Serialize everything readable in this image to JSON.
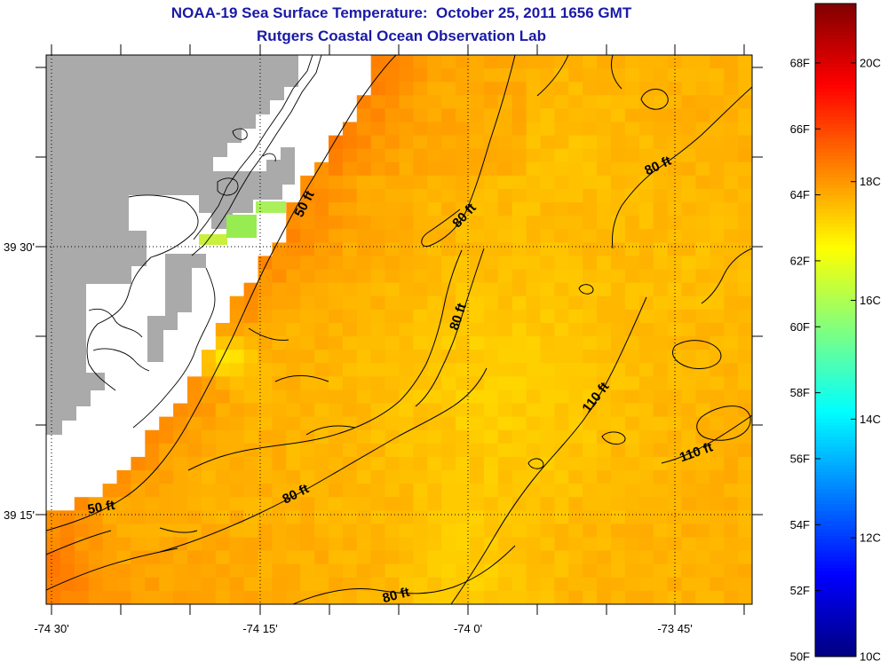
{
  "title": {
    "line1": "NOAA-19 Sea Surface Temperature:  October 25, 2011 1656 GMT",
    "line2": "Rutgers Coastal Ocean Observation Lab"
  },
  "map": {
    "lat_labels": [
      "39 30'",
      "39 15'"
    ],
    "lon_labels": [
      "-74 30'",
      "-74 15'",
      "-74 0'",
      "-73 45'"
    ],
    "contour_labels": [
      "50 ft",
      "80 ft",
      "80 ft",
      "80 ft",
      "110 ft",
      "110 ft",
      "80 ft",
      "50 ft",
      "80 ft"
    ]
  },
  "colorbar": {
    "fahrenheit_labels": [
      "68F",
      "66F",
      "64F",
      "62F",
      "60F",
      "58F",
      "56F",
      "54F",
      "52F",
      "50F"
    ],
    "celsius_labels": [
      "20C",
      "18C",
      "16C",
      "14C",
      "12C",
      "10C"
    ],
    "range_c": [
      10,
      21
    ],
    "colormap": "jet"
  },
  "colors": {
    "title": "#1a1aa6",
    "land": "#aaaaaa",
    "no_data": "#ffffff",
    "contours": "#000000",
    "text": "#000000"
  }
}
